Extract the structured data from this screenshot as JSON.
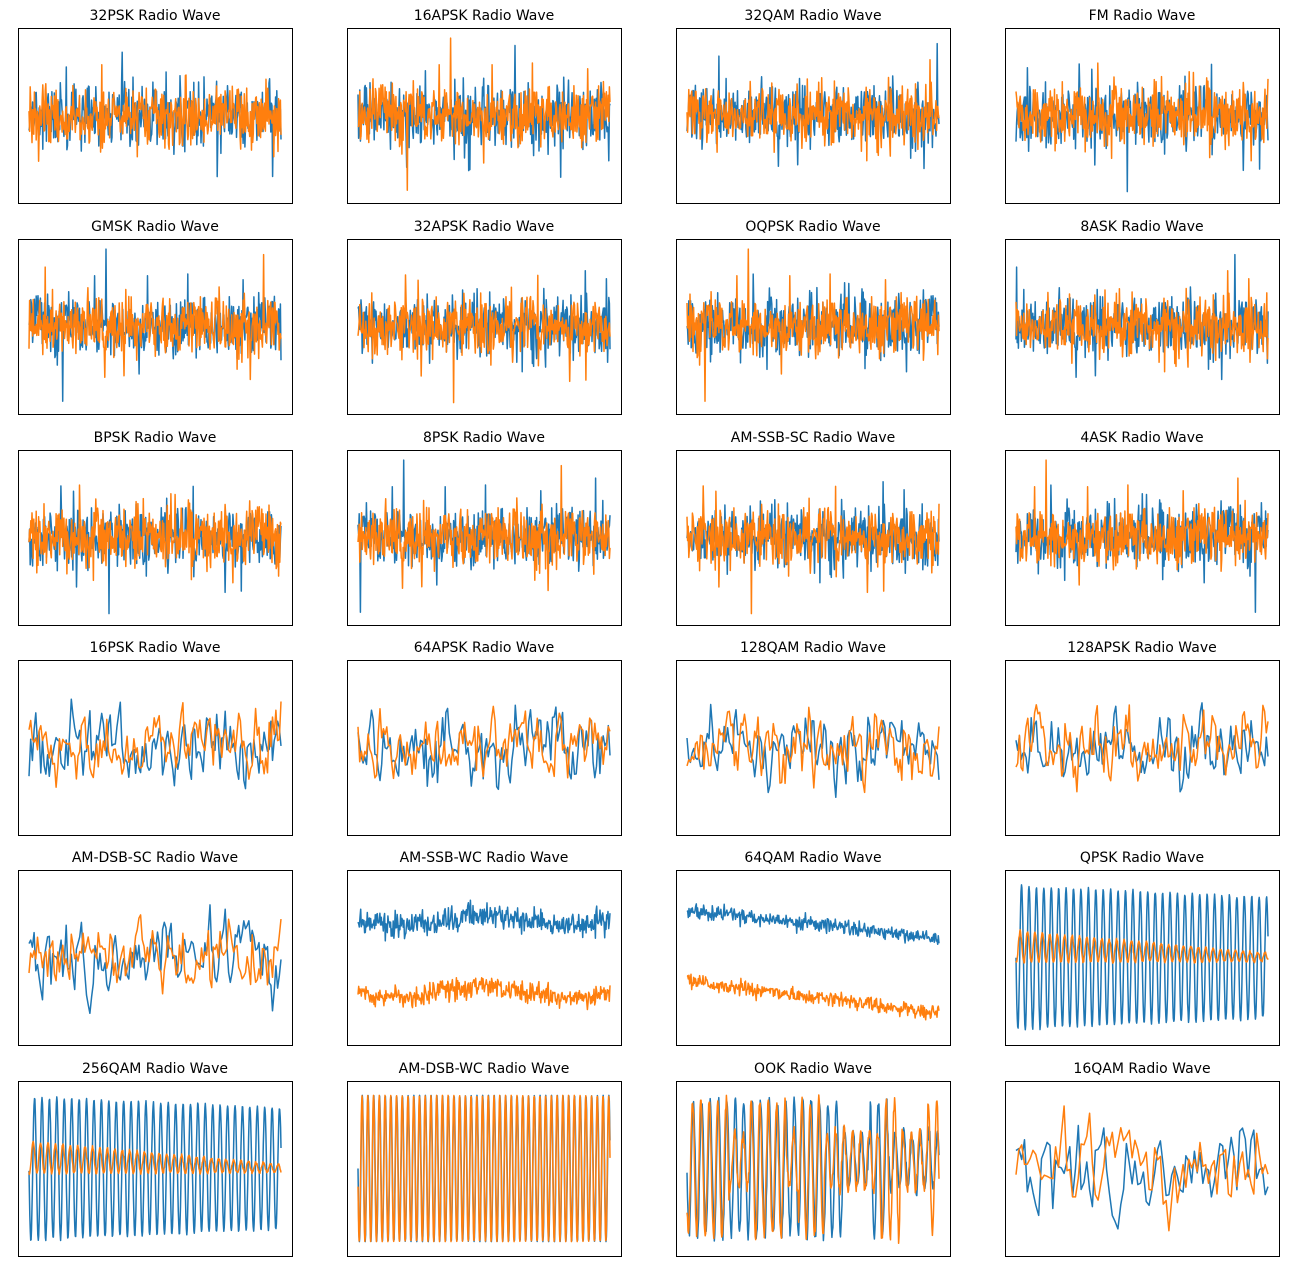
{
  "colors": {
    "series_a": "#1f77b4",
    "series_b": "#ff7f0e",
    "frame": "#000000",
    "background": "#ffffff"
  },
  "chart_data": [
    {
      "type": "line",
      "title": "32PSK Radio Wave",
      "style": "noise",
      "axes_ticks": "hidden"
    },
    {
      "type": "line",
      "title": "16APSK Radio Wave",
      "style": "noise",
      "axes_ticks": "hidden"
    },
    {
      "type": "line",
      "title": "32QAM Radio Wave",
      "style": "noise",
      "axes_ticks": "hidden"
    },
    {
      "type": "line",
      "title": "FM Radio Wave",
      "style": "noise",
      "axes_ticks": "hidden"
    },
    {
      "type": "line",
      "title": "GMSK Radio Wave",
      "style": "noise",
      "axes_ticks": "hidden"
    },
    {
      "type": "line",
      "title": "32APSK Radio Wave",
      "style": "noise",
      "axes_ticks": "hidden"
    },
    {
      "type": "line",
      "title": "OQPSK Radio Wave",
      "style": "noise",
      "axes_ticks": "hidden"
    },
    {
      "type": "line",
      "title": "8ASK Radio Wave",
      "style": "noise",
      "axes_ticks": "hidden"
    },
    {
      "type": "line",
      "title": "BPSK Radio Wave",
      "style": "noise",
      "axes_ticks": "hidden"
    },
    {
      "type": "line",
      "title": "8PSK Radio Wave",
      "style": "noise",
      "axes_ticks": "hidden"
    },
    {
      "type": "line",
      "title": "AM-SSB-SC Radio Wave",
      "style": "noise",
      "axes_ticks": "hidden"
    },
    {
      "type": "line",
      "title": "4ASK Radio Wave",
      "style": "noise",
      "axes_ticks": "hidden"
    },
    {
      "type": "line",
      "title": "16PSK Radio Wave",
      "style": "slow-noise",
      "axes_ticks": "hidden"
    },
    {
      "type": "line",
      "title": "64APSK Radio Wave",
      "style": "slow-noise",
      "axes_ticks": "hidden"
    },
    {
      "type": "line",
      "title": "128QAM Radio Wave",
      "style": "slow-noise",
      "axes_ticks": "hidden"
    },
    {
      "type": "line",
      "title": "128APSK Radio Wave",
      "style": "slow-noise",
      "axes_ticks": "hidden"
    },
    {
      "type": "line",
      "title": "AM-DSB-SC Radio Wave",
      "style": "slow-noise",
      "axes_ticks": "hidden"
    },
    {
      "type": "line",
      "title": "AM-SSB-WC Radio Wave",
      "style": "separated",
      "axes_ticks": "hidden"
    },
    {
      "type": "line",
      "title": "64QAM Radio Wave",
      "style": "separated-decay",
      "axes_ticks": "hidden"
    },
    {
      "type": "line",
      "title": "QPSK Radio Wave",
      "style": "carrier",
      "axes_ticks": "hidden"
    },
    {
      "type": "line",
      "title": "256QAM Radio Wave",
      "style": "carrier",
      "axes_ticks": "hidden"
    },
    {
      "type": "line",
      "title": "AM-DSB-WC Radio Wave",
      "style": "dense-sine",
      "axes_ticks": "hidden"
    },
    {
      "type": "line",
      "title": "OOK Radio Wave",
      "style": "onoff",
      "axes_ticks": "hidden"
    },
    {
      "type": "line",
      "title": "16QAM Radio Wave",
      "style": "sparse",
      "axes_ticks": "hidden"
    }
  ]
}
